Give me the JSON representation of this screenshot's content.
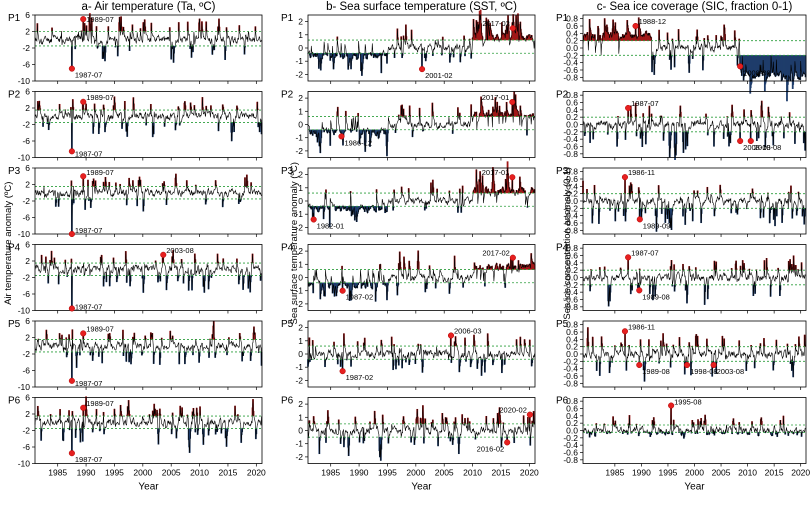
{
  "chart_data": [
    {
      "type": "area",
      "title": "a- Air temperature (Ta, ºC)",
      "xlabel": "Year",
      "ylabel": "Air temperature anomaly (ºC)",
      "xlim": [
        1981,
        2021
      ],
      "x_ticks": [
        "1985",
        "1990",
        "1995",
        "2000",
        "2005",
        "2010",
        "2015",
        "2020"
      ],
      "threshold_lines": "dashed green",
      "positive_color": "#a01818",
      "negative_color": "#1f3d6b",
      "panels": [
        {
          "name": "P1",
          "ylim": [
            -10,
            6
          ],
          "y_ticks": [
            "6",
            "2",
            "-2",
            "-6",
            "-10"
          ],
          "upper": 2,
          "lower": -1.5,
          "seed": 11,
          "extremes": [
            {
              "label": "1989-07",
              "x": 1989.5,
              "y": 5.0
            },
            {
              "label": "1987-07",
              "x": 1987.5,
              "y": -7.0
            }
          ]
        },
        {
          "name": "P2",
          "ylim": [
            -10,
            6
          ],
          "y_ticks": [
            "6",
            "2",
            "-2",
            "-6",
            "-10"
          ],
          "upper": 1.5,
          "lower": -1.5,
          "seed": 12,
          "extremes": [
            {
              "label": "1989-07",
              "x": 1989.5,
              "y": 3.5
            },
            {
              "label": "1987-07",
              "x": 1987.5,
              "y": -8.5
            }
          ]
        },
        {
          "name": "P3",
          "ylim": [
            -10,
            6
          ],
          "y_ticks": [
            "6",
            "2",
            "-2",
            "-6",
            "-10"
          ],
          "upper": 1.5,
          "lower": -1.5,
          "seed": 13,
          "extremes": [
            {
              "label": "1989-07",
              "x": 1989.5,
              "y": 4.0
            },
            {
              "label": "1987-07",
              "x": 1987.5,
              "y": -10.0
            }
          ]
        },
        {
          "name": "P4",
          "ylim": [
            -10,
            6
          ],
          "y_ticks": [
            "6",
            "2",
            "-2",
            "-6",
            "-10"
          ],
          "upper": 1.5,
          "lower": -1.5,
          "seed": 14,
          "extremes": [
            {
              "label": "2003-08",
              "x": 2003.6,
              "y": 3.5
            },
            {
              "label": "1987-07",
              "x": 1987.5,
              "y": -9.5
            }
          ]
        },
        {
          "name": "P5",
          "ylim": [
            -10,
            6
          ],
          "y_ticks": [
            "6",
            "2",
            "-2",
            "-6",
            "-10"
          ],
          "upper": 1.5,
          "lower": -1.5,
          "seed": 15,
          "extremes": [
            {
              "label": "1989-07",
              "x": 1989.5,
              "y": 3.0
            },
            {
              "label": "1987-07",
              "x": 1987.5,
              "y": -8.5
            }
          ]
        },
        {
          "name": "P6",
          "ylim": [
            -10,
            6
          ],
          "y_ticks": [
            "6",
            "2",
            "-2",
            "-6",
            "-10"
          ],
          "upper": 1.5,
          "lower": -1.5,
          "seed": 16,
          "extremes": [
            {
              "label": "1989-07",
              "x": 1989.5,
              "y": 3.5
            },
            {
              "label": "1987-07",
              "x": 1987.5,
              "y": -7.5
            }
          ]
        }
      ]
    },
    {
      "type": "area",
      "title": "b- Sea surface temperature (SST, ºC)",
      "xlabel": "Year",
      "ylabel": "Sea surface temperature anomaly (ºC)",
      "xlim": [
        1981,
        2021
      ],
      "x_ticks": [
        "1985",
        "1990",
        "1995",
        "2000",
        "2005",
        "2010",
        "2015",
        "2020"
      ],
      "threshold_lines": "dashed green",
      "positive_color": "#a01818",
      "negative_color": "#1f3d6b",
      "panels": [
        {
          "name": "P1",
          "ylim": [
            -2.5,
            2.5
          ],
          "y_ticks": [
            "2",
            "1",
            "0",
            "-1",
            "-2"
          ],
          "upper": 0.6,
          "lower": -0.4,
          "seed": 21,
          "extremes": [
            {
              "label": "2017-02",
              "x": 2017.1,
              "y": 1.5
            },
            {
              "label": "2001-02",
              "x": 2001.1,
              "y": -1.6
            }
          ]
        },
        {
          "name": "P2",
          "ylim": [
            -2.5,
            2.5
          ],
          "y_ticks": [
            "2",
            "1",
            "0",
            "-1",
            "-2"
          ],
          "upper": 0.6,
          "lower": -0.4,
          "seed": 22,
          "extremes": [
            {
              "label": "2017-01",
              "x": 2017.0,
              "y": 1.7
            },
            {
              "label": "1986-12",
              "x": 1986.9,
              "y": -0.9
            }
          ]
        },
        {
          "name": "P3",
          "ylim": [
            -2.5,
            2.5
          ],
          "y_ticks": [
            "2",
            "1",
            "0",
            "-1",
            "-2"
          ],
          "upper": 0.6,
          "lower": -0.4,
          "seed": 23,
          "extremes": [
            {
              "label": "2017-01",
              "x": 2017.0,
              "y": 1.8
            },
            {
              "label": "1982-01",
              "x": 1982.0,
              "y": -1.4
            }
          ]
        },
        {
          "name": "P4",
          "ylim": [
            -2.5,
            2.5
          ],
          "y_ticks": [
            "2",
            "1",
            "0",
            "-1",
            "-2"
          ],
          "upper": 0.6,
          "lower": -0.4,
          "seed": 24,
          "extremes": [
            {
              "label": "2017-02",
              "x": 2017.1,
              "y": 1.5
            },
            {
              "label": "1987-02",
              "x": 1987.1,
              "y": -1.0
            }
          ]
        },
        {
          "name": "P5",
          "ylim": [
            -2.5,
            2.5
          ],
          "y_ticks": [
            "2",
            "1",
            "0",
            "-1",
            "-2"
          ],
          "upper": 0.6,
          "lower": -0.4,
          "seed": 25,
          "extremes": [
            {
              "label": "2006-03",
              "x": 2006.2,
              "y": 1.4
            },
            {
              "label": "1987-02",
              "x": 1987.1,
              "y": -1.3
            }
          ]
        },
        {
          "name": "P6",
          "ylim": [
            -2.5,
            2.5
          ],
          "y_ticks": [
            "2",
            "1",
            "0",
            "-1",
            "-2"
          ],
          "upper": 0.5,
          "lower": -0.5,
          "seed": 26,
          "extremes": [
            {
              "label": "2020-02",
              "x": 2020.1,
              "y": 1.2
            },
            {
              "label": "2016-02",
              "x": 2016.1,
              "y": -0.9
            }
          ]
        }
      ]
    },
    {
      "type": "area",
      "title": "c- Sea ice coverage (SIC, fraction 0-1)",
      "xlabel": "Year",
      "ylabel": "Sea ice concentration anomaly (0-1)",
      "xlim": [
        1979,
        2021
      ],
      "x_ticks": [
        "1985",
        "1990",
        "1995",
        "2000",
        "2005",
        "2010",
        "2015",
        "2020"
      ],
      "threshold_lines": "dashed green",
      "positive_color": "#a01818",
      "negative_color": "#1f3d6b",
      "panels": [
        {
          "name": "P1",
          "ylim": [
            -0.9,
            0.9
          ],
          "y_ticks": [
            "0.8",
            "0.6",
            "0.4",
            "0.2",
            "0.0",
            "-0.2",
            "-0.4",
            "-0.6",
            "-0.8"
          ],
          "upper": 0.2,
          "lower": -0.2,
          "seed": 31,
          "extremes": [
            {
              "label": "1988-12",
              "x": 1988.9,
              "y": 0.6
            },
            {
              "label": "2008-08",
              "x": 2008.6,
              "y": -0.5
            }
          ]
        },
        {
          "name": "P2",
          "ylim": [
            -0.9,
            0.9
          ],
          "y_ticks": [
            "0.8",
            "0.6",
            "0.4",
            "0.2",
            "0.0",
            "-0.2",
            "-0.4",
            "-0.6",
            "-0.8"
          ],
          "upper": 0.2,
          "lower": -0.2,
          "seed": 32,
          "extremes": [
            {
              "label": "1987-07",
              "x": 1987.5,
              "y": 0.45
            },
            {
              "label": "2008-08",
              "x": 2008.6,
              "y": -0.45
            },
            {
              "label": "2010-08",
              "x": 2010.6,
              "y": -0.45
            }
          ]
        },
        {
          "name": "P3",
          "ylim": [
            -0.9,
            0.9
          ],
          "y_ticks": [
            "0.8",
            "0.6",
            "0.4",
            "0.2",
            "0.0",
            "-0.2",
            "-0.4",
            "-0.6",
            "-0.8"
          ],
          "upper": 0.2,
          "lower": -0.2,
          "seed": 33,
          "extremes": [
            {
              "label": "1986-11",
              "x": 1986.9,
              "y": 0.65
            },
            {
              "label": "1989-09",
              "x": 1989.7,
              "y": -0.5
            }
          ]
        },
        {
          "name": "P4",
          "ylim": [
            -0.9,
            0.9
          ],
          "y_ticks": [
            "0.8",
            "0.6",
            "0.4",
            "0.2",
            "0.0",
            "-0.2",
            "-0.4",
            "-0.6",
            "-0.8"
          ],
          "upper": 0.2,
          "lower": -0.2,
          "seed": 34,
          "extremes": [
            {
              "label": "1987-07",
              "x": 1987.5,
              "y": 0.55
            },
            {
              "label": "1989-08",
              "x": 1989.6,
              "y": -0.35
            }
          ]
        },
        {
          "name": "P5",
          "ylim": [
            -0.9,
            0.9
          ],
          "y_ticks": [
            "0.8",
            "0.6",
            "0.4",
            "0.2",
            "0.0",
            "-0.2",
            "-0.4",
            "-0.6",
            "-0.8"
          ],
          "upper": 0.2,
          "lower": -0.2,
          "seed": 35,
          "extremes": [
            {
              "label": "1986-11",
              "x": 1986.9,
              "y": 0.62
            },
            {
              "label": "1989-08",
              "x": 1989.6,
              "y": -0.3
            },
            {
              "label": "1998-08",
              "x": 1998.6,
              "y": -0.3
            },
            {
              "label": "2003-08",
              "x": 2003.6,
              "y": -0.3
            }
          ]
        },
        {
          "name": "P6",
          "ylim": [
            -0.9,
            0.9
          ],
          "y_ticks": [
            "0.8",
            "0.6",
            "0.4",
            "0.2",
            "0.0",
            "-0.2",
            "-0.4",
            "-0.6",
            "-0.8"
          ],
          "upper": 0.15,
          "lower": -0.05,
          "seed": 36,
          "extremes": [
            {
              "label": "1995-08",
              "x": 1995.6,
              "y": 0.68
            }
          ]
        }
      ]
    }
  ]
}
